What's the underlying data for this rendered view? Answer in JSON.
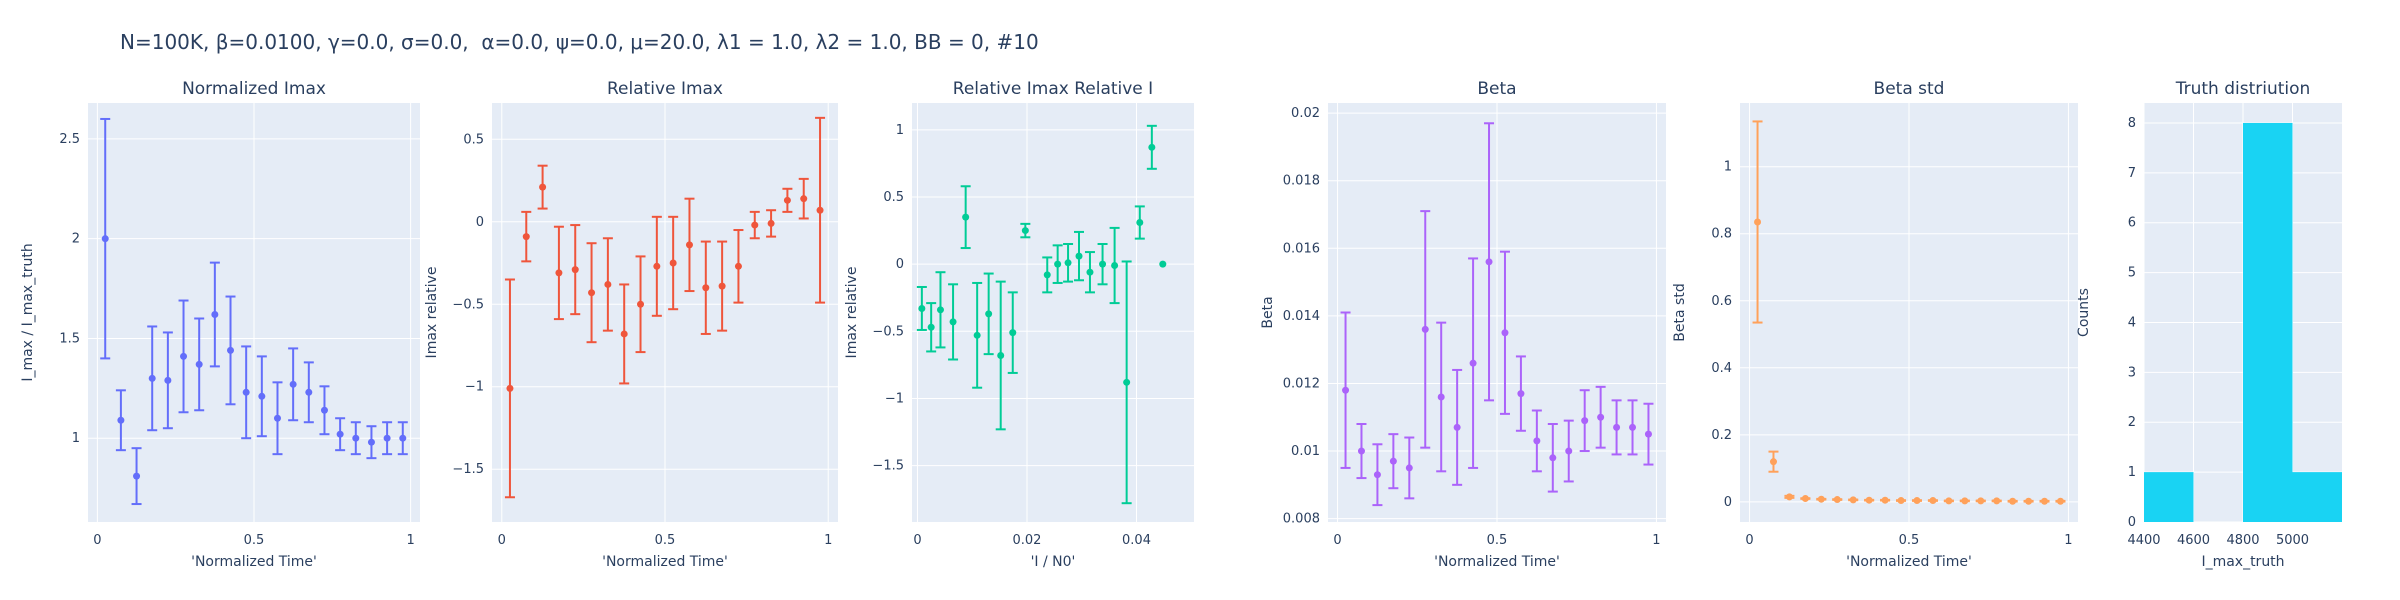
{
  "figure": {
    "title": "N=100K, β=0.0100, γ=0.0, σ=0.0,  α=0.0, ψ=0.0, μ=20.0, λ1 = 1.0, λ2 = 1.0, BB = 0, #10"
  },
  "colors": {
    "plot_bg": "#e5ecf6",
    "grid": "#ffffff",
    "text": "#2a3f5f"
  },
  "chart_data": [
    {
      "type": "scatter",
      "title": "Normalized Imax",
      "xlabel": "'Normalized Time'",
      "ylabel": "I_max / I_max_truth",
      "color": "#636efa",
      "xlim": [
        -0.03,
        1.03
      ],
      "ylim": [
        0.58,
        2.68
      ],
      "xticks": [
        0,
        0.5,
        1
      ],
      "xtick_labels": [
        "0",
        "0.5",
        "1"
      ],
      "yticks": [
        1,
        1.5,
        2,
        2.5
      ],
      "ytick_labels": [
        "1",
        "1.5",
        "2",
        "2.5"
      ],
      "x": [
        0.025,
        0.075,
        0.125,
        0.175,
        0.225,
        0.275,
        0.325,
        0.375,
        0.425,
        0.475,
        0.525,
        0.575,
        0.625,
        0.675,
        0.725,
        0.775,
        0.825,
        0.875,
        0.925,
        0.975
      ],
      "y": [
        2.0,
        1.09,
        0.81,
        1.3,
        1.29,
        1.41,
        1.37,
        1.62,
        1.44,
        1.23,
        1.21,
        1.1,
        1.27,
        1.23,
        1.14,
        1.02,
        1.0,
        0.98,
        1.0,
        1.0
      ],
      "err": [
        0.6,
        0.15,
        0.14,
        0.26,
        0.24,
        0.28,
        0.23,
        0.26,
        0.27,
        0.23,
        0.2,
        0.18,
        0.18,
        0.15,
        0.12,
        0.08,
        0.08,
        0.08,
        0.08,
        0.08
      ]
    },
    {
      "type": "scatter",
      "title": "Relative Imax",
      "xlabel": "'Normalized Time'",
      "ylabel": "Imax relative",
      "color": "#ef553b",
      "xlim": [
        -0.03,
        1.03
      ],
      "ylim": [
        -1.82,
        0.72
      ],
      "xticks": [
        0,
        0.5,
        1
      ],
      "xtick_labels": [
        "0",
        "0.5",
        "1"
      ],
      "yticks": [
        -1.5,
        -1,
        -0.5,
        0,
        0.5
      ],
      "ytick_labels": [
        "−1.5",
        "−1",
        "−0.5",
        "0",
        "0.5"
      ],
      "x": [
        0.025,
        0.075,
        0.125,
        0.175,
        0.225,
        0.275,
        0.325,
        0.375,
        0.425,
        0.475,
        0.525,
        0.575,
        0.625,
        0.675,
        0.725,
        0.775,
        0.825,
        0.875,
        0.925,
        0.975
      ],
      "y": [
        -1.01,
        -0.09,
        0.21,
        -0.31,
        -0.29,
        -0.43,
        -0.38,
        -0.68,
        -0.5,
        -0.27,
        -0.25,
        -0.14,
        -0.4,
        -0.39,
        -0.27,
        -0.02,
        -0.01,
        0.13,
        0.14,
        0.07
      ],
      "err": [
        0.66,
        0.15,
        0.13,
        0.28,
        0.27,
        0.3,
        0.28,
        0.3,
        0.29,
        0.3,
        0.28,
        0.28,
        0.28,
        0.27,
        0.22,
        0.08,
        0.08,
        0.07,
        0.12,
        0.56
      ]
    },
    {
      "type": "scatter",
      "title": "Relative Imax Relative I",
      "xlabel": "'I / N0'",
      "ylabel": "Imax relative",
      "color": "#00cc96",
      "xlim": [
        -0.001,
        0.0505
      ],
      "ylim": [
        -1.92,
        1.2
      ],
      "xticks": [
        0,
        0.02,
        0.04
      ],
      "xtick_labels": [
        "0",
        "0.02",
        "0.04"
      ],
      "yticks": [
        -1.5,
        -1,
        -0.5,
        0,
        0.5,
        1
      ],
      "ytick_labels": [
        "−1.5",
        "−1",
        "−0.5",
        "0",
        "0.5",
        "1"
      ],
      "x": [
        0.0008,
        0.0025,
        0.0042,
        0.0065,
        0.0088,
        0.0109,
        0.013,
        0.0152,
        0.0174,
        0.0197,
        0.0237,
        0.0256,
        0.0275,
        0.0295,
        0.0315,
        0.0338,
        0.036,
        0.0382,
        0.0406,
        0.0428,
        0.0448
      ],
      "y": [
        -0.33,
        -0.47,
        -0.34,
        -0.43,
        0.35,
        -0.53,
        -0.37,
        -0.68,
        -0.51,
        0.25,
        -0.08,
        0.0,
        0.01,
        0.06,
        -0.06,
        0.0,
        -0.01,
        -0.88,
        0.31,
        0.87,
        0.0
      ],
      "err": [
        0.16,
        0.18,
        0.28,
        0.28,
        0.23,
        0.39,
        0.3,
        0.55,
        0.3,
        0.05,
        0.13,
        0.14,
        0.14,
        0.18,
        0.15,
        0.15,
        0.28,
        0.9,
        0.12,
        0.16,
        0.0
      ]
    },
    {
      "type": "scatter",
      "title": "Beta",
      "xlabel": "'Normalized Time'",
      "ylabel": "Beta",
      "color": "#ab63fa",
      "xlim": [
        -0.03,
        1.03
      ],
      "ylim": [
        0.0079,
        0.0203
      ],
      "xticks": [
        0,
        0.5,
        1
      ],
      "xtick_labels": [
        "0",
        "0.5",
        "1"
      ],
      "yticks": [
        0.008,
        0.01,
        0.012,
        0.014,
        0.016,
        0.018,
        0.02
      ],
      "ytick_labels": [
        "0.008",
        "0.01",
        "0.012",
        "0.014",
        "0.016",
        "0.018",
        "0.02"
      ],
      "x": [
        0.025,
        0.075,
        0.125,
        0.175,
        0.225,
        0.275,
        0.325,
        0.375,
        0.425,
        0.475,
        0.525,
        0.575,
        0.625,
        0.675,
        0.725,
        0.775,
        0.825,
        0.875,
        0.925,
        0.975
      ],
      "y": [
        0.0118,
        0.01,
        0.0093,
        0.0097,
        0.0095,
        0.0136,
        0.0116,
        0.0107,
        0.0126,
        0.0156,
        0.0135,
        0.0117,
        0.0103,
        0.0098,
        0.01,
        0.0109,
        0.011,
        0.0107,
        0.0107,
        0.0105
      ],
      "err": [
        0.0023,
        0.0008,
        0.0009,
        0.0008,
        0.0009,
        0.0035,
        0.0022,
        0.0017,
        0.0031,
        0.0041,
        0.0024,
        0.0011,
        0.0009,
        0.001,
        0.0009,
        0.0009,
        0.0009,
        0.0008,
        0.0008,
        0.0009
      ]
    },
    {
      "type": "scatter",
      "title": "Beta std",
      "xlabel": "'Normalized Time'",
      "ylabel": "Beta std",
      "color": "#ffa15a",
      "xlim": [
        -0.03,
        1.03
      ],
      "ylim": [
        -0.06,
        1.19
      ],
      "xticks": [
        0,
        0.5,
        1
      ],
      "xtick_labels": [
        "0",
        "0.5",
        "1"
      ],
      "yticks": [
        0,
        0.2,
        0.4,
        0.6,
        0.8,
        1
      ],
      "ytick_labels": [
        "0",
        "0.2",
        "0.4",
        "0.6",
        "0.8",
        "1"
      ],
      "x": [
        0.025,
        0.075,
        0.125,
        0.175,
        0.225,
        0.275,
        0.325,
        0.375,
        0.425,
        0.475,
        0.525,
        0.575,
        0.625,
        0.675,
        0.725,
        0.775,
        0.825,
        0.875,
        0.925,
        0.975
      ],
      "y": [
        0.835,
        0.12,
        0.015,
        0.01,
        0.008,
        0.007,
        0.006,
        0.005,
        0.005,
        0.004,
        0.004,
        0.004,
        0.003,
        0.003,
        0.003,
        0.003,
        0.002,
        0.002,
        0.002,
        0.002
      ],
      "err": [
        0.3,
        0.03,
        0.003,
        0.001,
        0.001,
        0.001,
        0.001,
        0.001,
        0.001,
        0.001,
        0.001,
        0.001,
        0.001,
        0.001,
        0.001,
        0.001,
        0.001,
        0.001,
        0.001,
        0.001
      ]
    },
    {
      "type": "bar",
      "subtype": "histogram",
      "title": "Truth distriution",
      "xlabel": "I_max_truth",
      "ylabel": "Counts",
      "color": "#19d3f3",
      "xlim": [
        4400,
        5200
      ],
      "ylim": [
        0,
        8.4
      ],
      "xticks": [
        4400,
        4600,
        4800,
        5000
      ],
      "xtick_labels": [
        "4400",
        "4600",
        "4800",
        "5000"
      ],
      "yticks": [
        0,
        1,
        2,
        3,
        4,
        5,
        6,
        7,
        8
      ],
      "ytick_labels": [
        "0",
        "1",
        "2",
        "3",
        "4",
        "5",
        "6",
        "7",
        "8"
      ],
      "bins": [
        [
          4400,
          4600
        ],
        [
          4600,
          4800
        ],
        [
          4800,
          5000
        ],
        [
          5000,
          5200
        ]
      ],
      "values": [
        1,
        0,
        8,
        1
      ]
    }
  ]
}
